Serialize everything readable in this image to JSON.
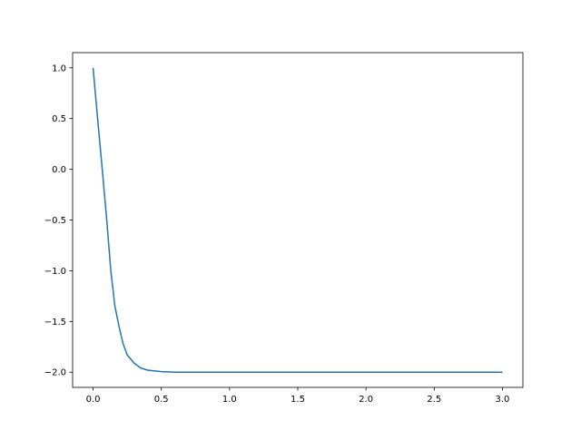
{
  "chart_data": {
    "type": "line",
    "title": "",
    "xlabel": "",
    "ylabel": "",
    "xlim": [
      -0.15,
      3.15
    ],
    "ylim": [
      -2.15,
      1.15
    ],
    "grid": false,
    "xticks": [
      0.0,
      0.5,
      1.0,
      1.5,
      2.0,
      2.5,
      3.0
    ],
    "xtick_labels": [
      "0.0",
      "0.5",
      "1.0",
      "1.5",
      "2.0",
      "2.5",
      "3.0"
    ],
    "yticks": [
      1.0,
      0.5,
      0.0,
      -0.5,
      -1.0,
      -1.5,
      -2.0
    ],
    "ytick_labels": [
      "1.0",
      "0.5",
      "0.0",
      "−0.5",
      "−1.0",
      "−1.5",
      "−2.0"
    ],
    "series": [
      {
        "color": "#1f77b4",
        "x": [
          0,
          0.033,
          0.067,
          0.1,
          0.13,
          0.16,
          0.19,
          0.22,
          0.25,
          0.3,
          0.35,
          0.4,
          0.5,
          0.6,
          1.0,
          2.0,
          3.0
        ],
        "y": [
          1.0,
          0.5,
          0.0,
          -0.5,
          -1.0,
          -1.35,
          -1.55,
          -1.72,
          -1.83,
          -1.91,
          -1.96,
          -1.98,
          -1.995,
          -2.0,
          -2.0,
          -2.0,
          -2.0
        ]
      }
    ]
  }
}
